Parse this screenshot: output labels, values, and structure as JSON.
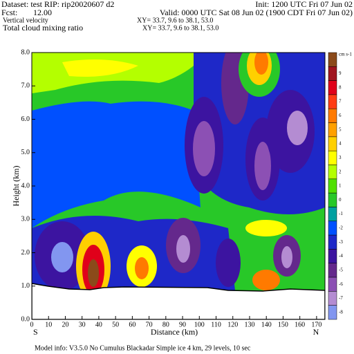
{
  "header": {
    "dataset": "Dataset: test   RIP: rip20020607 d2",
    "init": "Init: 1200 UTC Fri 07 Jun 02",
    "fcst_label": "Fcst:",
    "fcst_value": "12.00",
    "valid": "Valid: 0000 UTC Sat 08 Jun 02 (1900 CDT Fri 07 Jun 02)",
    "field1": "Vertical velocity",
    "field1_xy": "XY=  33.7,  9.6 to  38.1, 53.0",
    "field2": "Total cloud mixing ratio",
    "field2_xy": "XY=  33.7,  9.6 to  38.1, 53.0"
  },
  "chart_data": {
    "type": "contour",
    "xlabel": "Distance (km)",
    "ylabel": "Height (km)",
    "xlim": [
      0,
      175
    ],
    "ylim": [
      0,
      8
    ],
    "xticks": [
      0,
      10,
      20,
      30,
      40,
      50,
      60,
      70,
      80,
      90,
      100,
      110,
      120,
      130,
      140,
      150,
      160,
      170
    ],
    "yticks": [
      {
        "value": 0,
        "label": "0.0"
      },
      {
        "value": 1,
        "label": "1.0"
      },
      {
        "value": 2,
        "label": "2.0"
      },
      {
        "value": 3,
        "label": "3.0"
      },
      {
        "value": 4,
        "label": "4.0"
      },
      {
        "value": 5,
        "label": "5.0"
      },
      {
        "value": 6,
        "label": "6.0"
      },
      {
        "value": 7,
        "label": "7.0"
      },
      {
        "value": 8,
        "label": "8.0"
      }
    ],
    "left_end": "S",
    "right_end": "N",
    "colorbar": {
      "unit": "cm s-1",
      "over_color": "#8b4a1a",
      "labels": [
        9,
        8,
        7,
        6,
        5,
        4,
        3,
        2,
        1,
        0,
        -1,
        -2,
        -3,
        -4,
        -5,
        -6,
        -7,
        -8
      ],
      "colors": [
        "#a0141e",
        "#e0001a",
        "#ff3c14",
        "#ff7a00",
        "#ffa000",
        "#ffd000",
        "#ffff00",
        "#b4ff00",
        "#50e000",
        "#28c828",
        "#00a0a0",
        "#0050ff",
        "#1e28c8",
        "#3c14a0",
        "#64288c",
        "#8c50b4",
        "#b48cd2",
        "#8296f0"
      ]
    }
  },
  "footer": "Model info: V3.5.0  No Cumulus  Blackadar   Simple ice     4 km,  29 levels,   10 sec"
}
